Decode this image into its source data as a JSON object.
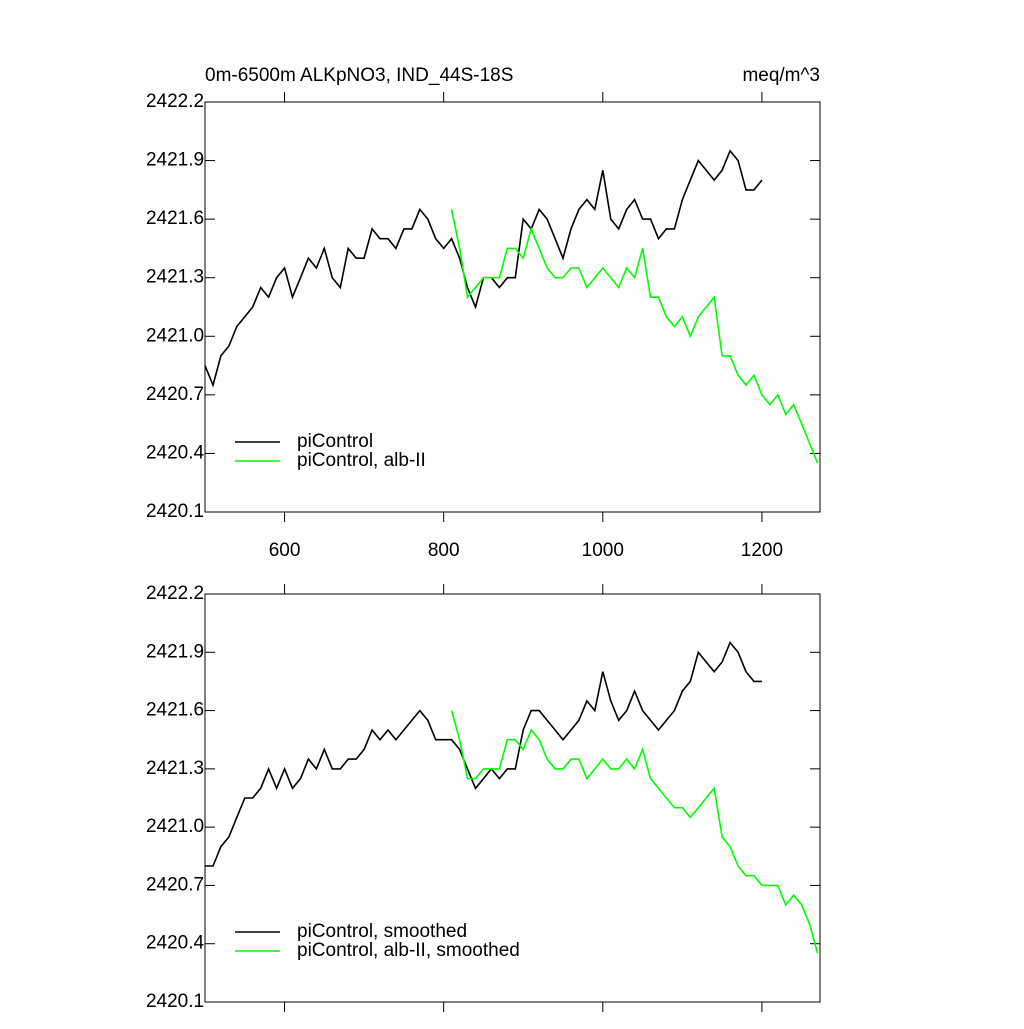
{
  "chart_data": [
    {
      "type": "line",
      "title": "0m-6500m ALKpNO3, IND_44S-18S",
      "subtitle": "meq/m^3",
      "x": [
        500,
        510,
        520,
        530,
        540,
        550,
        560,
        570,
        580,
        590,
        600,
        610,
        620,
        630,
        640,
        650,
        660,
        670,
        680,
        690,
        700,
        710,
        720,
        730,
        740,
        750,
        760,
        770,
        780,
        790,
        800,
        810,
        820,
        830,
        840,
        850,
        860,
        870,
        880,
        890,
        900,
        910,
        920,
        930,
        940,
        950,
        960,
        970,
        980,
        990,
        1000,
        1010,
        1020,
        1030,
        1040,
        1050,
        1060,
        1070,
        1080,
        1090,
        1100,
        1110,
        1120,
        1130,
        1140,
        1150,
        1160,
        1170,
        1180,
        1190,
        1200,
        1210,
        1220,
        1230,
        1240,
        1250,
        1260,
        1270
      ],
      "series": [
        {
          "name": "piControl",
          "color": "#000000",
          "values": [
            2420.85,
            2420.75,
            2420.9,
            2420.95,
            2421.05,
            2421.1,
            2421.15,
            2421.25,
            2421.2,
            2421.3,
            2421.35,
            2421.2,
            2421.3,
            2421.4,
            2421.35,
            2421.45,
            2421.3,
            2421.25,
            2421.45,
            2421.4,
            2421.4,
            2421.55,
            2421.5,
            2421.5,
            2421.45,
            2421.55,
            2421.55,
            2421.65,
            2421.6,
            2421.5,
            2421.45,
            2421.5,
            2421.4,
            2421.25,
            2421.15,
            2421.3,
            2421.3,
            2421.25,
            2421.3,
            2421.3,
            2421.6,
            2421.55,
            2421.65,
            2421.6,
            2421.5,
            2421.4,
            2421.55,
            2421.65,
            2421.7,
            2421.65,
            2421.85,
            2421.6,
            2421.55,
            2421.65,
            2421.7,
            2421.6,
            2421.6,
            2421.5,
            2421.55,
            2421.55,
            2421.7,
            2421.8,
            2421.9,
            2421.85,
            2421.8,
            2421.85,
            2421.95,
            2421.9,
            2421.75,
            2421.75,
            2421.8,
            null,
            null,
            null,
            null,
            null,
            null,
            null
          ]
        },
        {
          "name": "piControl, alb-II",
          "color": "#00ff00",
          "values": [
            null,
            null,
            null,
            null,
            null,
            null,
            null,
            null,
            null,
            null,
            null,
            null,
            null,
            null,
            null,
            null,
            null,
            null,
            null,
            null,
            null,
            null,
            null,
            null,
            null,
            null,
            null,
            null,
            null,
            null,
            null,
            2421.65,
            2421.45,
            2421.2,
            2421.25,
            2421.3,
            2421.3,
            2421.3,
            2421.45,
            2421.45,
            2421.4,
            2421.55,
            2421.45,
            2421.35,
            2421.3,
            2421.3,
            2421.35,
            2421.35,
            2421.25,
            2421.3,
            2421.35,
            2421.3,
            2421.25,
            2421.35,
            2421.3,
            2421.45,
            2421.2,
            2421.2,
            2421.1,
            2421.05,
            2421.1,
            2421.0,
            2421.1,
            2421.15,
            2421.2,
            2420.9,
            2420.9,
            2420.8,
            2420.75,
            2420.8,
            2420.7,
            2420.65,
            2420.7,
            2420.6,
            2420.65,
            2420.55,
            2420.45,
            2420.35
          ]
        }
      ],
      "xlim": [
        500,
        1273
      ],
      "xticks": [
        600,
        800,
        1000,
        1200
      ],
      "ylim": [
        2420.1,
        2422.2
      ],
      "yticks": [
        {
          "value": 2420.1,
          "label": "2420.1"
        },
        {
          "value": 2420.4,
          "label": "2420.4"
        },
        {
          "value": 2420.7,
          "label": "2420.7"
        },
        {
          "value": 2421.0,
          "label": "2421.0"
        },
        {
          "value": 2421.3,
          "label": "2421.3"
        },
        {
          "value": 2421.6,
          "label": "2421.6"
        },
        {
          "value": 2421.9,
          "label": "2421.9"
        },
        {
          "value": 2422.2,
          "label": "2422.2"
        }
      ],
      "legend": "lower left"
    },
    {
      "type": "line",
      "x": [
        500,
        510,
        520,
        530,
        540,
        550,
        560,
        570,
        580,
        590,
        600,
        610,
        620,
        630,
        640,
        650,
        660,
        670,
        680,
        690,
        700,
        710,
        720,
        730,
        740,
        750,
        760,
        770,
        780,
        790,
        800,
        810,
        820,
        830,
        840,
        850,
        860,
        870,
        880,
        890,
        900,
        910,
        920,
        930,
        940,
        950,
        960,
        970,
        980,
        990,
        1000,
        1010,
        1020,
        1030,
        1040,
        1050,
        1060,
        1070,
        1080,
        1090,
        1100,
        1110,
        1120,
        1130,
        1140,
        1150,
        1160,
        1170,
        1180,
        1190,
        1200,
        1210,
        1220,
        1230,
        1240,
        1250,
        1260,
        1270
      ],
      "series": [
        {
          "name": "piControl, smoothed",
          "color": "#000000",
          "values": [
            2420.8,
            2420.8,
            2420.9,
            2420.95,
            2421.05,
            2421.15,
            2421.15,
            2421.2,
            2421.3,
            2421.2,
            2421.3,
            2421.2,
            2421.25,
            2421.35,
            2421.3,
            2421.4,
            2421.3,
            2421.3,
            2421.35,
            2421.35,
            2421.4,
            2421.5,
            2421.45,
            2421.5,
            2421.45,
            2421.5,
            2421.55,
            2421.6,
            2421.55,
            2421.45,
            2421.45,
            2421.45,
            2421.4,
            2421.3,
            2421.2,
            2421.25,
            2421.3,
            2421.25,
            2421.3,
            2421.3,
            2421.5,
            2421.6,
            2421.6,
            2421.55,
            2421.5,
            2421.45,
            2421.5,
            2421.55,
            2421.65,
            2421.6,
            2421.8,
            2421.65,
            2421.55,
            2421.6,
            2421.7,
            2421.6,
            2421.55,
            2421.5,
            2421.55,
            2421.6,
            2421.7,
            2421.75,
            2421.9,
            2421.85,
            2421.8,
            2421.85,
            2421.95,
            2421.9,
            2421.8,
            2421.75,
            2421.75,
            null,
            null,
            null,
            null,
            null,
            null,
            null
          ]
        },
        {
          "name": "piControl, alb-II, smoothed",
          "color": "#00ff00",
          "values": [
            null,
            null,
            null,
            null,
            null,
            null,
            null,
            null,
            null,
            null,
            null,
            null,
            null,
            null,
            null,
            null,
            null,
            null,
            null,
            null,
            null,
            null,
            null,
            null,
            null,
            null,
            null,
            null,
            null,
            null,
            null,
            2421.6,
            2421.45,
            2421.25,
            2421.25,
            2421.3,
            2421.3,
            2421.3,
            2421.45,
            2421.45,
            2421.4,
            2421.5,
            2421.45,
            2421.35,
            2421.3,
            2421.3,
            2421.35,
            2421.35,
            2421.25,
            2421.3,
            2421.35,
            2421.3,
            2421.3,
            2421.35,
            2421.3,
            2421.4,
            2421.25,
            2421.2,
            2421.15,
            2421.1,
            2421.1,
            2421.05,
            2421.1,
            2421.15,
            2421.2,
            2420.95,
            2420.9,
            2420.8,
            2420.75,
            2420.75,
            2420.7,
            2420.7,
            2420.7,
            2420.6,
            2420.65,
            2420.6,
            2420.5,
            2420.35
          ]
        }
      ],
      "xlim": [
        500,
        1273
      ],
      "xticks": [
        600,
        800,
        1000,
        1200
      ],
      "ylim": [
        2420.1,
        2422.2
      ],
      "yticks": [
        {
          "value": 2420.1,
          "label": "2420.1"
        },
        {
          "value": 2420.4,
          "label": "2420.4"
        },
        {
          "value": 2420.7,
          "label": "2420.7"
        },
        {
          "value": 2421.0,
          "label": "2421.0"
        },
        {
          "value": 2421.3,
          "label": "2421.3"
        },
        {
          "value": 2421.6,
          "label": "2421.6"
        },
        {
          "value": 2421.9,
          "label": "2421.9"
        },
        {
          "value": 2422.2,
          "label": "2422.2"
        }
      ],
      "legend": "lower left"
    }
  ]
}
